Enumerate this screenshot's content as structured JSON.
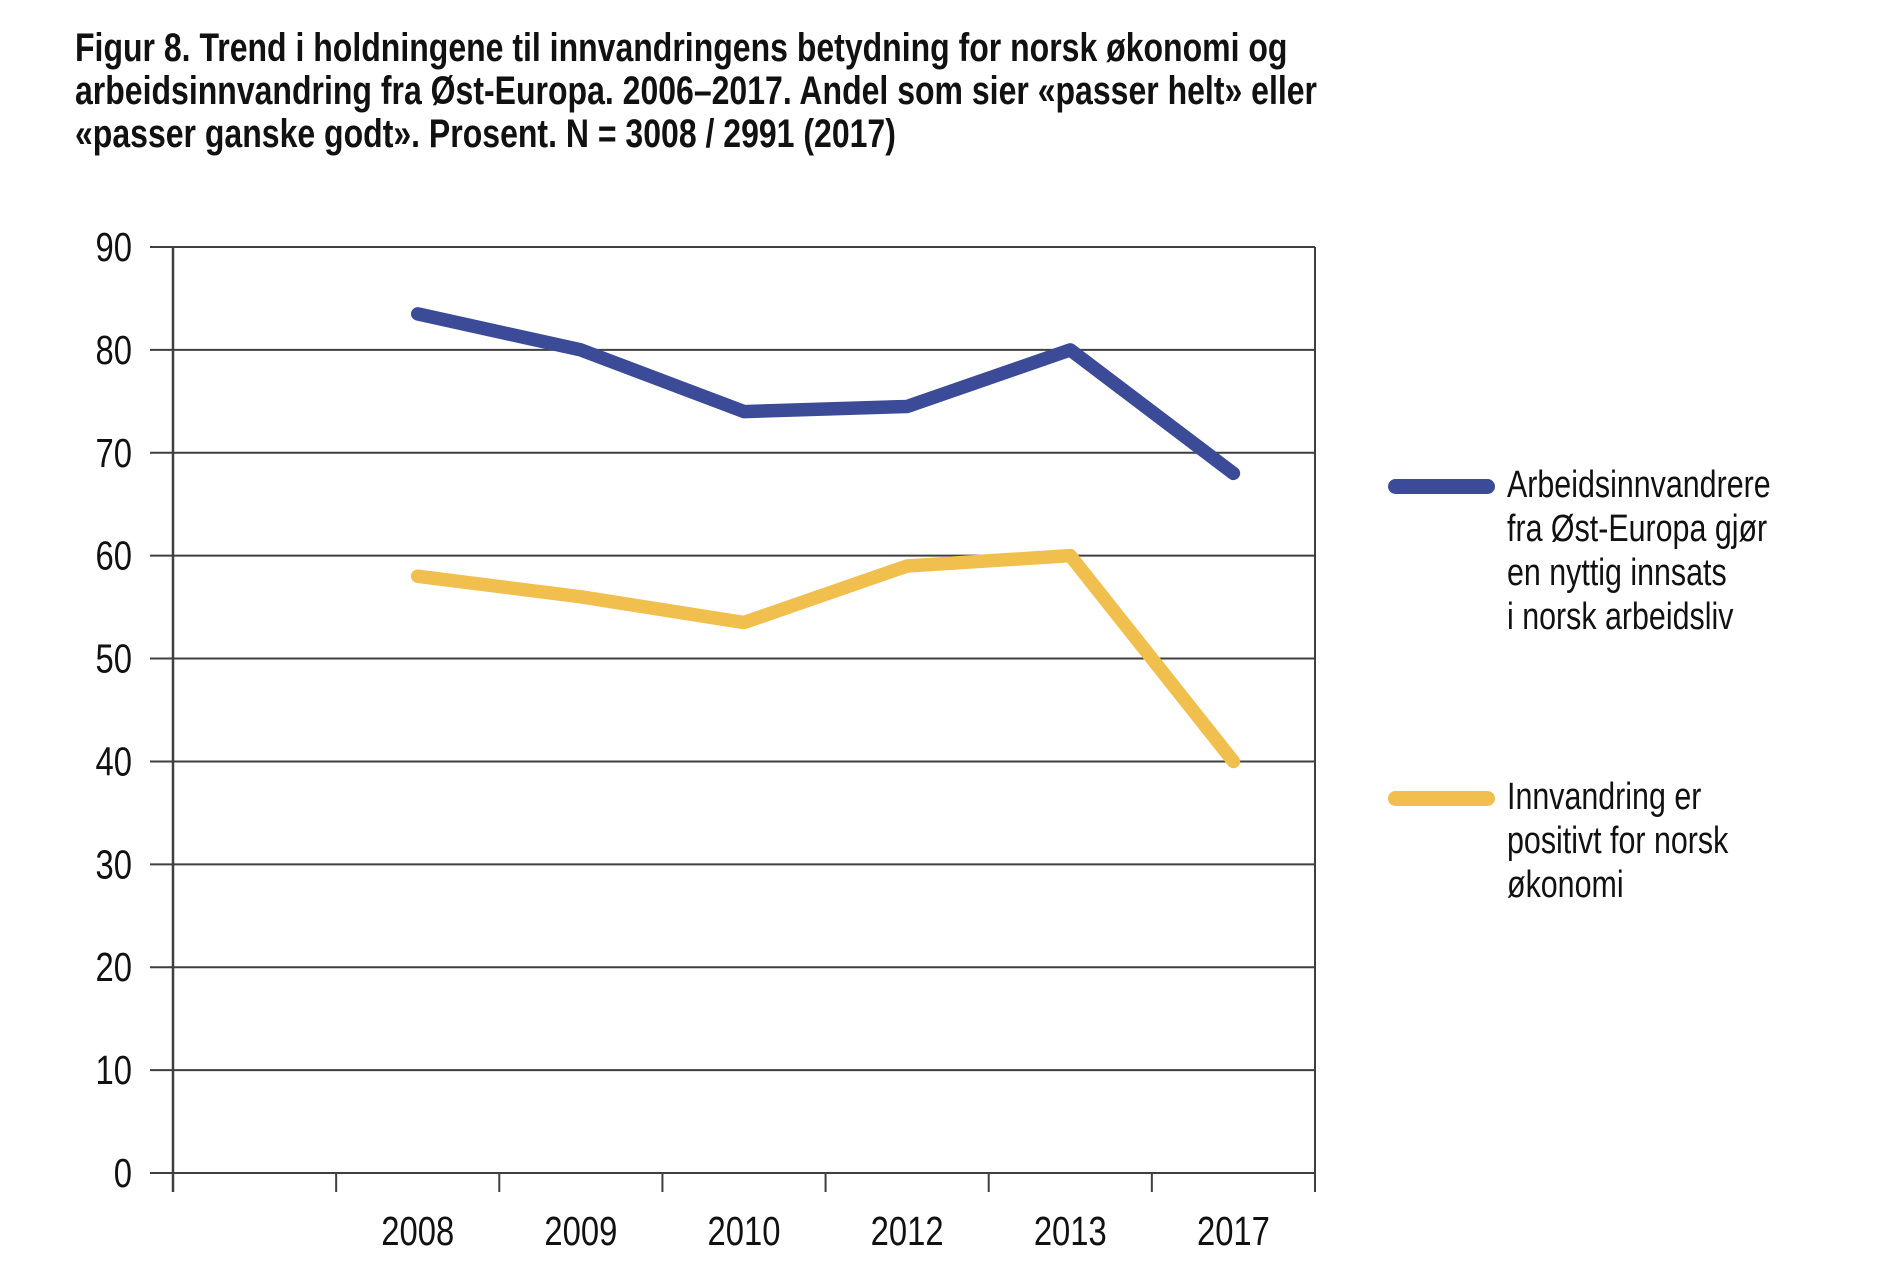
{
  "figure": {
    "title_full": "Figur 8. Trend i holdningene til innvandringens betydning for norsk økonomi og arbeidsinnvandring fra Øst-Europa. 2006–2017. Andel som sier «passer helt» eller «passer ganske godt». Prosent. N = 3008 / 2991 (2017)",
    "title_lines": [
      "Figur 8. Trend i holdningene til innvandringens betydning for norsk økonomi og",
      "arbeidsinnvandring fra Øst-Europa. 2006–2017. Andel som sier «passer helt» eller",
      "«passer ganske godt». Prosent. N = 3008 / 2991 (2017)"
    ]
  },
  "chart_data": {
    "type": "line",
    "title": "Figur 8. Trend i holdningene til innvandringens betydning for norsk økonomi og arbeidsinnvandring fra Øst-Europa. 2006–2017. Andel som sier «passer helt» eller «passer ganske godt». Prosent. N = 3008 / 2991 (2017)",
    "categories": [
      "2008",
      "2009",
      "2010",
      "2012",
      "2013",
      "2017"
    ],
    "series": [
      {
        "name": "Arbeidsinnvandrere fra Øst-Europa gjør en nyttig innsats i norsk arbeidsliv",
        "color": "#3b4b97",
        "values": [
          83.5,
          80,
          74,
          74.5,
          80,
          68
        ]
      },
      {
        "name": "Innvandring er positivt for norsk økonomi",
        "color": "#f0bf4e",
        "values": [
          58,
          56,
          53.5,
          59,
          60,
          40
        ]
      }
    ],
    "xlabel": "",
    "ylabel": "",
    "ylim": [
      0,
      90
    ],
    "y_ticks": [
      0,
      10,
      20,
      30,
      40,
      50,
      60,
      70,
      80,
      90
    ],
    "grid": "horizontal",
    "legend_position": "right"
  },
  "legend": {
    "items": [
      {
        "label": "Arbeidsinnvandrere\nfra Øst-Europa gjør\nen nyttig innsats\ni norsk arbeidsliv",
        "color": "#3b4b97"
      },
      {
        "label": "Innvandring er\npositivt for norsk\nøkonomi",
        "color": "#f0bf4e"
      }
    ]
  },
  "colors": {
    "series_blue": "#3b4b97",
    "series_yellow": "#f0bf4e",
    "grid": "#3f3f3f",
    "text": "#111111"
  }
}
